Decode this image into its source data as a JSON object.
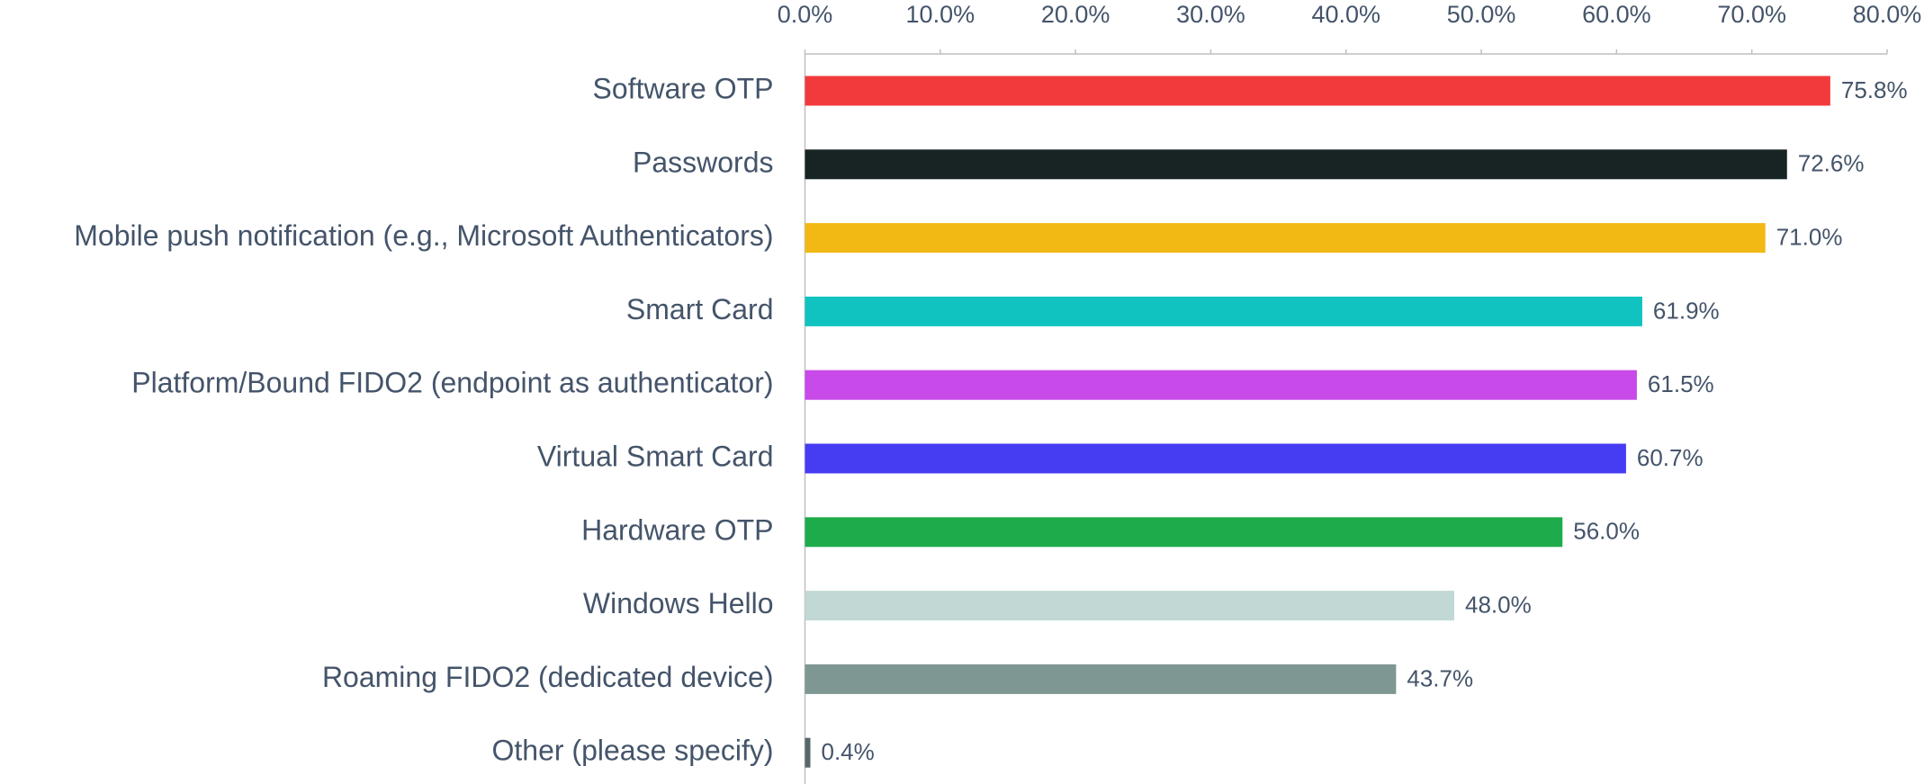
{
  "chart_data": {
    "type": "bar",
    "orientation": "horizontal",
    "categories": [
      "Software OTP",
      "Passwords",
      "Mobile push notification (e.g., Microsoft Authenticators)",
      "Smart Card",
      "Platform/Bound FIDO2 (endpoint as authenticator)",
      "Virtual Smart Card",
      "Hardware OTP",
      "Windows Hello",
      "Roaming FIDO2 (dedicated device)",
      "Other (please specify)"
    ],
    "values": [
      75.8,
      72.6,
      71.0,
      61.9,
      61.5,
      60.7,
      56.0,
      48.0,
      43.7,
      0.4
    ],
    "value_labels": [
      "75.8%",
      "72.6%",
      "71.0%",
      "61.9%",
      "61.5%",
      "60.7%",
      "56.0%",
      "48.0%",
      "43.7%",
      "0.4%"
    ],
    "colors": [
      "#f23a3c",
      "#182424",
      "#f2b915",
      "#10c3c0",
      "#c84ae8",
      "#463cf2",
      "#1eab4b",
      "#c1d8d4",
      "#7f9793",
      "#586868"
    ],
    "xlim": [
      0,
      80
    ],
    "xticks": [
      {
        "value": 0,
        "label": "0.0%"
      },
      {
        "value": 10,
        "label": "10.0%"
      },
      {
        "value": 20,
        "label": "20.0%"
      },
      {
        "value": 30,
        "label": "30.0%"
      },
      {
        "value": 40,
        "label": "40.0%"
      },
      {
        "value": 50,
        "label": "50.0%"
      },
      {
        "value": 60,
        "label": "60.0%"
      },
      {
        "value": 70,
        "label": "70.0%"
      },
      {
        "value": 80,
        "label": "80.0%"
      }
    ],
    "grid": false
  }
}
